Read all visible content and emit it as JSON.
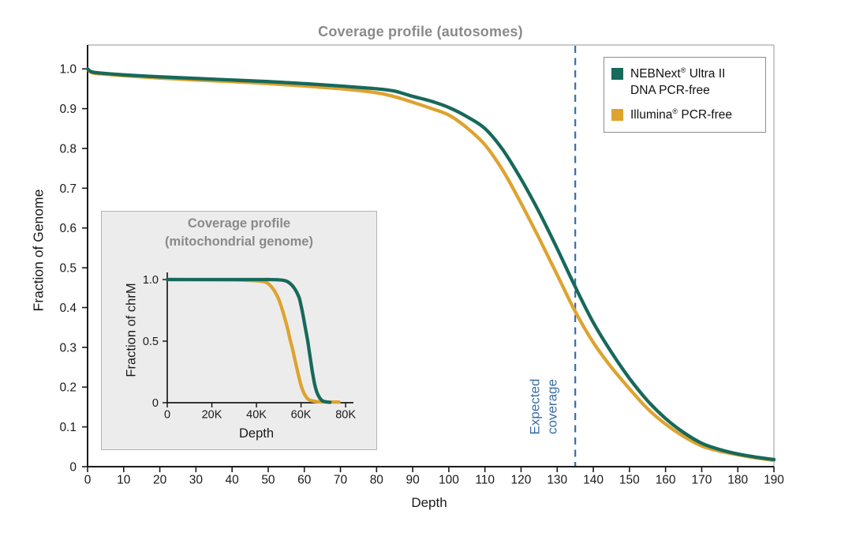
{
  "title": "Coverage profile (autosomes)",
  "colors": {
    "nebnext_green": "#17695a",
    "illumina_gold": "#dea32f",
    "expected_line_blue": "#3a6da4",
    "title_gray": "#8a8a8a",
    "axis_black": "#1a1a1a",
    "frame_light_gray": "#ababab",
    "inset_background": "#ececec"
  },
  "axes": {
    "x_label": "Depth",
    "y_label": "Fraction of Genome"
  },
  "annotation": {
    "line1": "Expected",
    "line2": "coverage",
    "x_value": 135
  },
  "legend": {
    "items": [
      {
        "key": "nebnext",
        "brand": "NEBNext",
        "reg": "®",
        "rest": " Ultra II",
        "line2": "DNA PCR-free",
        "color": "#17695a"
      },
      {
        "key": "illumina",
        "brand": "Illumina",
        "reg": "®",
        "rest": " PCR-free",
        "line2": "",
        "color": "#dea32f"
      }
    ]
  },
  "inset": {
    "title_line1": "Coverage profile",
    "title_line2": "(mitochondrial genome)",
    "x_label": "Depth",
    "y_label": "Fraction of chrM"
  },
  "chart_data": [
    {
      "id": "main",
      "type": "line",
      "title": "Coverage profile (autosomes)",
      "xlabel": "Depth",
      "ylabel": "Fraction of Genome",
      "xlim": [
        0,
        190
      ],
      "ylim": [
        0,
        1.06
      ],
      "grid": false,
      "legend_position": "upper right",
      "x_ticks": {
        "values": [
          0,
          10,
          20,
          30,
          40,
          50,
          60,
          70,
          80,
          90,
          100,
          110,
          120,
          130,
          140,
          150,
          160,
          170,
          180,
          190
        ],
        "labels": [
          "0",
          "10",
          "20",
          "30",
          "40",
          "50",
          "60",
          "70",
          "80",
          "90",
          "100",
          "110",
          "120",
          "130",
          "140",
          "150",
          "160",
          "170",
          "180",
          "190"
        ]
      },
      "y_ticks": {
        "values": [
          0,
          0.1,
          0.2,
          0.3,
          0.4,
          0.5,
          0.6,
          0.7,
          0.8,
          0.9,
          1.0
        ],
        "labels": [
          "0",
          "0.1",
          "0.2",
          "0.3",
          "0.4",
          "0.5",
          "0.6",
          "0.7",
          "0.8",
          "0.9",
          "1.0"
        ]
      },
      "annotation": {
        "label": "Expected coverage",
        "x": 135
      },
      "series": [
        {
          "key": "nebnext",
          "name": "NEBNext® Ultra II DNA PCR-free",
          "color": "#17695a",
          "points": [
            [
              0,
              1.0
            ],
            [
              1,
              0.993
            ],
            [
              3,
              0.99
            ],
            [
              10,
              0.985
            ],
            [
              20,
              0.98
            ],
            [
              30,
              0.976
            ],
            [
              40,
              0.972
            ],
            [
              50,
              0.968
            ],
            [
              60,
              0.963
            ],
            [
              70,
              0.957
            ],
            [
              80,
              0.95
            ],
            [
              85,
              0.944
            ],
            [
              90,
              0.931
            ],
            [
              95,
              0.919
            ],
            [
              100,
              0.903
            ],
            [
              105,
              0.88
            ],
            [
              110,
              0.85
            ],
            [
              115,
              0.796
            ],
            [
              120,
              0.723
            ],
            [
              125,
              0.64
            ],
            [
              130,
              0.548
            ],
            [
              135,
              0.452
            ],
            [
              140,
              0.362
            ],
            [
              145,
              0.288
            ],
            [
              150,
              0.222
            ],
            [
              155,
              0.166
            ],
            [
              160,
              0.121
            ],
            [
              165,
              0.086
            ],
            [
              170,
              0.059
            ],
            [
              175,
              0.043
            ],
            [
              180,
              0.032
            ],
            [
              185,
              0.024
            ],
            [
              190,
              0.018
            ]
          ]
        },
        {
          "key": "illumina",
          "name": "Illumina® PCR-free",
          "color": "#dea32f",
          "points": [
            [
              0,
              1.0
            ],
            [
              1,
              0.991
            ],
            [
              3,
              0.988
            ],
            [
              10,
              0.983
            ],
            [
              20,
              0.977
            ],
            [
              30,
              0.972
            ],
            [
              40,
              0.968
            ],
            [
              50,
              0.963
            ],
            [
              60,
              0.957
            ],
            [
              70,
              0.95
            ],
            [
              80,
              0.94
            ],
            [
              85,
              0.93
            ],
            [
              90,
              0.916
            ],
            [
              95,
              0.901
            ],
            [
              100,
              0.884
            ],
            [
              105,
              0.852
            ],
            [
              110,
              0.809
            ],
            [
              115,
              0.744
            ],
            [
              120,
              0.662
            ],
            [
              125,
              0.574
            ],
            [
              130,
              0.482
            ],
            [
              135,
              0.39
            ],
            [
              140,
              0.312
            ],
            [
              145,
              0.25
            ],
            [
              150,
              0.196
            ],
            [
              155,
              0.146
            ],
            [
              160,
              0.107
            ],
            [
              165,
              0.076
            ],
            [
              170,
              0.052
            ],
            [
              175,
              0.039
            ],
            [
              180,
              0.03
            ],
            [
              185,
              0.022
            ],
            [
              190,
              0.016
            ]
          ]
        }
      ]
    },
    {
      "id": "inset",
      "type": "line",
      "title": "Coverage profile (mitochondrial genome)",
      "xlabel": "Depth",
      "ylabel": "Fraction of chrM",
      "xlim": [
        0,
        83.5
      ],
      "ylim": [
        0,
        1.058
      ],
      "grid": false,
      "x_unit": "K",
      "x_ticks": {
        "values": [
          0,
          20,
          40,
          60,
          80
        ],
        "labels": [
          "0",
          "20K",
          "40K",
          "60K",
          "80K"
        ]
      },
      "y_ticks": {
        "values": [
          0,
          0.5,
          1.0
        ],
        "labels": [
          "0",
          "0.5",
          "1.0"
        ]
      },
      "series": [
        {
          "key": "nebnext",
          "name": "NEBNext® Ultra II DNA PCR-free",
          "color": "#17695a",
          "points": [
            [
              0,
              1.0
            ],
            [
              30,
              1.0
            ],
            [
              45,
              1.0
            ],
            [
              50,
              0.998
            ],
            [
              53,
              0.99
            ],
            [
              55,
              0.97
            ],
            [
              57,
              0.93
            ],
            [
              59,
              0.86
            ],
            [
              60,
              0.79
            ],
            [
              61,
              0.7
            ],
            [
              62,
              0.6
            ],
            [
              63,
              0.5
            ],
            [
              64,
              0.38
            ],
            [
              65,
              0.26
            ],
            [
              66,
              0.16
            ],
            [
              67,
              0.09
            ],
            [
              68,
              0.05
            ],
            [
              69,
              0.025
            ],
            [
              70,
              0.012
            ],
            [
              72,
              0.005
            ],
            [
              73,
              0.003
            ]
          ]
        },
        {
          "key": "illumina",
          "name": "Illumina® PCR-free",
          "color": "#dea32f",
          "points": [
            [
              0,
              1.0
            ],
            [
              30,
              0.997
            ],
            [
              40,
              0.99
            ],
            [
              44,
              0.98
            ],
            [
              46,
              0.955
            ],
            [
              48,
              0.91
            ],
            [
              50,
              0.84
            ],
            [
              52,
              0.73
            ],
            [
              54,
              0.6
            ],
            [
              55,
              0.52
            ],
            [
              56,
              0.45
            ],
            [
              57,
              0.37
            ],
            [
              58,
              0.29
            ],
            [
              59,
              0.21
            ],
            [
              60,
              0.14
            ],
            [
              61,
              0.09
            ],
            [
              62,
              0.055
            ],
            [
              63,
              0.032
            ],
            [
              64,
              0.02
            ],
            [
              66,
              0.012
            ],
            [
              68,
              0.008
            ],
            [
              72,
              0.006
            ],
            [
              77,
              0.005
            ]
          ]
        }
      ]
    }
  ]
}
